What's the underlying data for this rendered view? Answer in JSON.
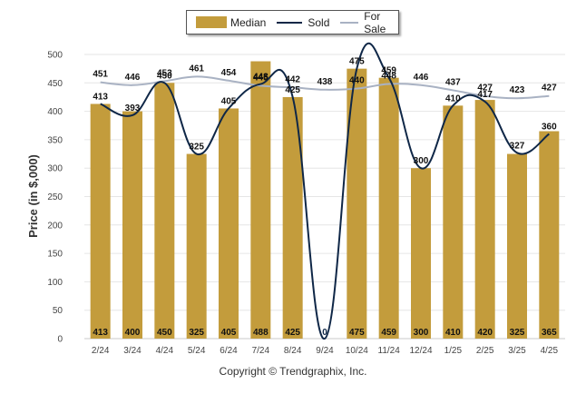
{
  "legend": {
    "median": "Median",
    "sold": "Sold",
    "for_sale": "For Sale"
  },
  "copyright": "Copyright © Trendgraphix, Inc.",
  "colors": {
    "median_bar": "#C39C3C",
    "sold_line": "#0F2747",
    "for_sale_line": "#A9B2C3",
    "grid": "#E6E6E6"
  },
  "chart_data": {
    "type": "bar",
    "title": "",
    "xlabel": "",
    "ylabel": "Price (in $,000)",
    "ylim": [
      0,
      500
    ],
    "yticks": [
      0,
      50,
      100,
      150,
      200,
      250,
      300,
      350,
      400,
      450,
      500
    ],
    "grid": true,
    "legend_position": "top-center",
    "categories": [
      "2/24",
      "3/24",
      "4/24",
      "5/24",
      "6/24",
      "7/24",
      "8/24",
      "9/24",
      "10/24",
      "11/24",
      "12/24",
      "1/25",
      "2/25",
      "3/25",
      "4/25"
    ],
    "series": [
      {
        "name": "Median",
        "type": "bar",
        "values": [
          413,
          400,
          450,
          325,
          405,
          488,
          425,
          0,
          475,
          459,
          300,
          410,
          420,
          325,
          365
        ]
      },
      {
        "name": "Sold",
        "type": "line",
        "values": [
          413,
          393,
          450,
          325,
          405,
          448,
          425,
          0,
          475,
          459,
          300,
          410,
          417,
          327,
          360
        ]
      },
      {
        "name": "For Sale",
        "type": "line",
        "values": [
          451,
          446,
          453,
          461,
          454,
          445,
          442,
          438,
          440,
          448,
          446,
          437,
          427,
          423,
          427
        ]
      }
    ]
  }
}
